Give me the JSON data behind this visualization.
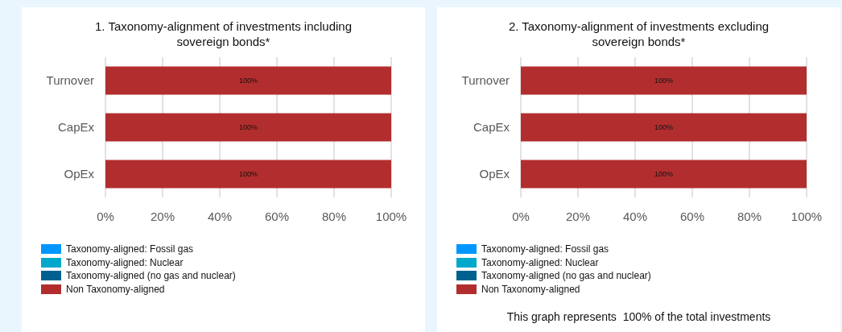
{
  "chart_data": [
    {
      "type": "bar",
      "orientation": "horizontal",
      "stacked": true,
      "title": "1. Taxonomy-alignment of investments including sovereign bonds*",
      "categories": [
        "Turnover",
        "CapEx",
        "OpEx"
      ],
      "series": [
        {
          "name": "Taxonomy-aligned: Fossil gas",
          "color": "#0096ff",
          "values": [
            0,
            0,
            0
          ]
        },
        {
          "name": "Taxonomy-aligned: Nuclear",
          "color": "#00a8cc",
          "values": [
            0,
            0,
            0
          ]
        },
        {
          "name": "Taxonomy-aligned (no gas and nuclear)",
          "color": "#006191",
          "values": [
            0,
            0,
            0
          ]
        },
        {
          "name": "Non Taxonomy-aligned",
          "color": "#b22e2e",
          "values": [
            100,
            100,
            100
          ],
          "value_labels": [
            "100%",
            "100%",
            "100%"
          ]
        }
      ],
      "xlim": [
        0,
        100
      ],
      "xticks": [
        {
          "value": 0,
          "label": "0%"
        },
        {
          "value": 20,
          "label": "20%"
        },
        {
          "value": 40,
          "label": "40%"
        },
        {
          "value": 60,
          "label": "60%"
        },
        {
          "value": 80,
          "label": "80%"
        },
        {
          "value": 100,
          "label": "100%"
        }
      ],
      "grid": "x",
      "legend": "bottom left"
    },
    {
      "type": "bar",
      "orientation": "horizontal",
      "stacked": true,
      "title": "2. Taxonomy-alignment of investments excluding sovereign bonds*",
      "categories": [
        "Turnover",
        "CapEx",
        "OpEx"
      ],
      "series": [
        {
          "name": "Taxonomy-aligned: Fossil gas",
          "color": "#0096ff",
          "values": [
            0,
            0,
            0
          ]
        },
        {
          "name": "Taxonomy-aligned: Nuclear",
          "color": "#00a8cc",
          "values": [
            0,
            0,
            0
          ]
        },
        {
          "name": "Taxonomy-aligned (no gas and nuclear)",
          "color": "#006191",
          "values": [
            0,
            0,
            0
          ]
        },
        {
          "name": "Non Taxonomy-aligned",
          "color": "#b22e2e",
          "values": [
            100,
            100,
            100
          ],
          "value_labels": [
            "100%",
            "100%",
            "100%"
          ]
        }
      ],
      "xlim": [
        0,
        100
      ],
      "xticks": [
        {
          "value": 0,
          "label": "0%"
        },
        {
          "value": 20,
          "label": "20%"
        },
        {
          "value": 40,
          "label": "40%"
        },
        {
          "value": 60,
          "label": "60%"
        },
        {
          "value": 80,
          "label": "80%"
        },
        {
          "value": 100,
          "label": "100%"
        }
      ],
      "grid": "x",
      "legend": "bottom left",
      "annotations": [
        "This graph represents  100% of the total investments"
      ]
    }
  ]
}
